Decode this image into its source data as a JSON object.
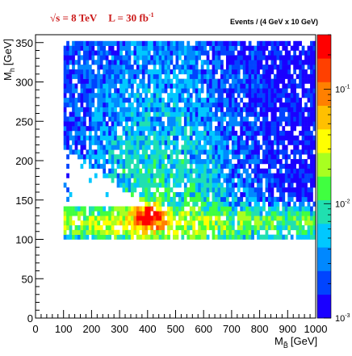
{
  "header": {
    "energy": "√s = 8 TeV",
    "luminosity": "L = 30 fb",
    "lumi_sup": "-1",
    "z_axis_title": "Events / (4 GeV x 10 GeV)"
  },
  "chart_data": {
    "type": "heatmap",
    "xlabel": "M",
    "xlabel_sub": "B̃",
    "xlabel_unit": "[GeV]",
    "ylabel": "M",
    "ylabel_sub": "h",
    "ylabel_unit": "[GeV]",
    "xlim": [
      0,
      1000
    ],
    "ylim": [
      0,
      360
    ],
    "xticks": [
      0,
      100,
      200,
      300,
      400,
      500,
      600,
      700,
      800,
      900,
      1000
    ],
    "yticks": [
      0,
      50,
      100,
      150,
      200,
      250,
      300,
      350
    ],
    "zscale": "log",
    "zlim": [
      0.001,
      0.3
    ],
    "zticks": [
      {
        "value": 0.001,
        "base": "10",
        "exp": "-3"
      },
      {
        "value": 0.01,
        "base": "10",
        "exp": "-2"
      },
      {
        "value": 0.1,
        "base": "10",
        "exp": "-1"
      }
    ],
    "palette": [
      "#1a00ff",
      "#0044ff",
      "#0088ff",
      "#00c8ff",
      "#20e0b0",
      "#40ff40",
      "#a8ff20",
      "#ffff00",
      "#ffc000",
      "#ff8000",
      "#ff4000",
      "#ff0000"
    ],
    "region": {
      "x_range": [
        100,
        1000
      ],
      "y_range": [
        100,
        350
      ]
    },
    "peak": {
      "x": 400,
      "y": 125,
      "value": 0.25
    },
    "colors": {
      "frame": "#000000",
      "background": "#ffffff"
    }
  }
}
